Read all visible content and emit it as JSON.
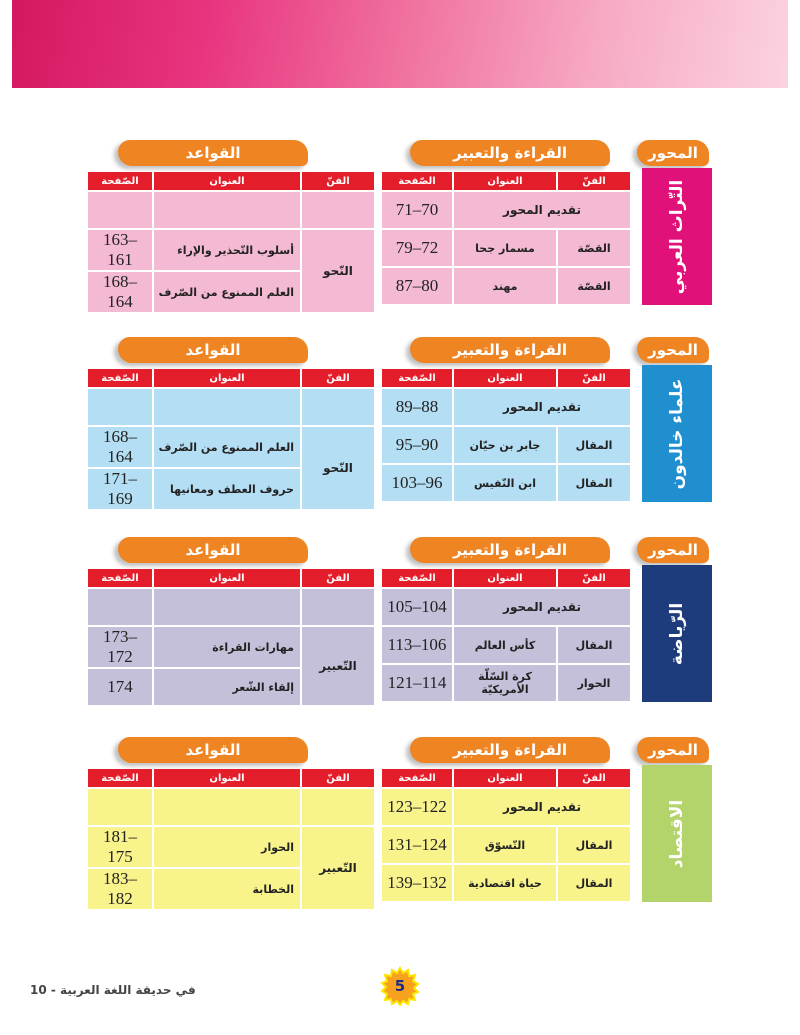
{
  "headers": {
    "axis": "المحور",
    "reading": "القراءة والتعبير",
    "grammar": "القواعد",
    "col_art": "الفنّ",
    "col_title": "العنوان",
    "col_page": "الصّفحة"
  },
  "sections": [
    {
      "axis_name": "التّراث العربي",
      "axis_color": "#e0127a",
      "row_color": "#f4bad3",
      "reading": [
        {
          "art": "",
          "title": "تقديم المحور",
          "page": "71–70"
        },
        {
          "art": "القصّة",
          "title": "مسمار جحا",
          "page": "79–72"
        },
        {
          "art": "القصّة",
          "title": "مهند",
          "page": "87–80"
        }
      ],
      "grammar": {
        "art": "النّحو",
        "rows": [
          {
            "title": "أسلوب التّحذير والإراء",
            "page": "163–161"
          },
          {
            "title": "العلم الممنوع من الصّرف",
            "page": "168–164"
          }
        ]
      }
    },
    {
      "axis_name": "علماء خالدون",
      "axis_color": "#1f8fd0",
      "row_color": "#b4def3",
      "reading": [
        {
          "art": "",
          "title": "تقديم المحور",
          "page": "89–88"
        },
        {
          "art": "المقال",
          "title": "جابر بن حيّان",
          "page": "95–90"
        },
        {
          "art": "المقال",
          "title": "ابن النّفيس",
          "page": "103–96"
        }
      ],
      "grammar": {
        "art": "النّحو",
        "rows": [
          {
            "title": "العلم الممنوع من الصّرف",
            "page": "168–164"
          },
          {
            "title": "حروف العطف ومعانيها",
            "page": "171–169"
          }
        ]
      }
    },
    {
      "axis_name": "الرّياضة",
      "axis_color": "#1e3b7c",
      "row_color": "#c4c0da",
      "reading": [
        {
          "art": "",
          "title": "تقديم المحور",
          "page": "105–104"
        },
        {
          "art": "المقال",
          "title": "كأس العالم",
          "page": "113–106"
        },
        {
          "art": "الحوار",
          "title": "كرة السّلّة الأمريكيّة",
          "page": "121–114"
        }
      ],
      "grammar": {
        "art": "التّعبير",
        "rows": [
          {
            "title": "مهارات القراءة",
            "page": "173–172"
          },
          {
            "title": "إلقاء الشّعر",
            "page": "174"
          }
        ]
      }
    },
    {
      "axis_name": "الاقتصاد",
      "axis_color": "#b3d46a",
      "row_color": "#f9f38c",
      "reading": [
        {
          "art": "",
          "title": "تقديم المحور",
          "page": "123–122"
        },
        {
          "art": "المقال",
          "title": "التّسوّق",
          "page": "131–124"
        },
        {
          "art": "المقال",
          "title": "حياة اقتصادية",
          "page": "139–132"
        }
      ],
      "grammar": {
        "art": "التّعبير",
        "rows": [
          {
            "title": "الحوار",
            "page": "181–175"
          },
          {
            "title": "الخطابة",
            "page": "183–182"
          }
        ]
      }
    }
  ],
  "footer": {
    "book_title": "في حديقة اللغة العربية - 10",
    "page_number": "5"
  },
  "colors": {
    "header_red": "#e31d2a",
    "pill_orange": "#ef8423"
  }
}
